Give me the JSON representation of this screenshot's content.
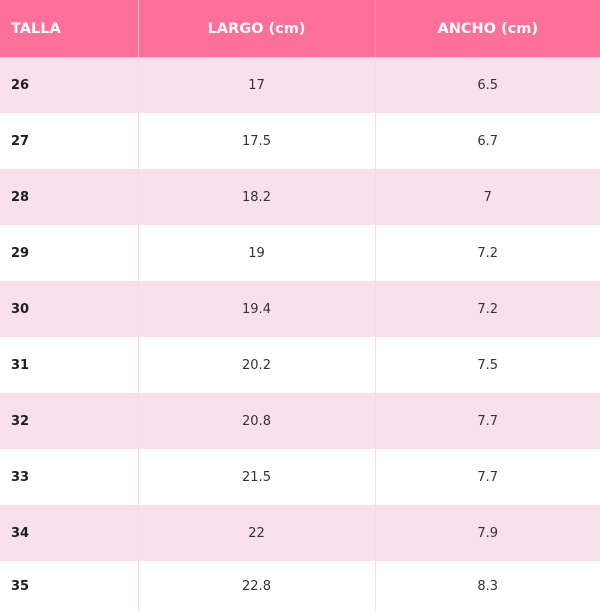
{
  "table": {
    "headers": [
      "TALLA",
      "LARGO (cm)",
      "ANCHO (cm)"
    ],
    "rows": [
      [
        "26",
        "17",
        "6.5"
      ],
      [
        "27",
        "17.5",
        "6.7"
      ],
      [
        "28",
        "18.2",
        "7"
      ],
      [
        "29",
        "19",
        "7.2"
      ],
      [
        "30",
        "19.4",
        "7.2"
      ],
      [
        "31",
        "20.2",
        "7.5"
      ],
      [
        "32",
        "20.8",
        "7.7"
      ],
      [
        "33",
        "21.5",
        "7.7"
      ],
      [
        "34",
        "22",
        "7.9"
      ],
      [
        "35",
        "22.8",
        "8.3"
      ]
    ]
  },
  "colors": {
    "header_bg": "#fd7098",
    "row_pink": "#f8e1ec",
    "row_white": "#ffffff"
  }
}
